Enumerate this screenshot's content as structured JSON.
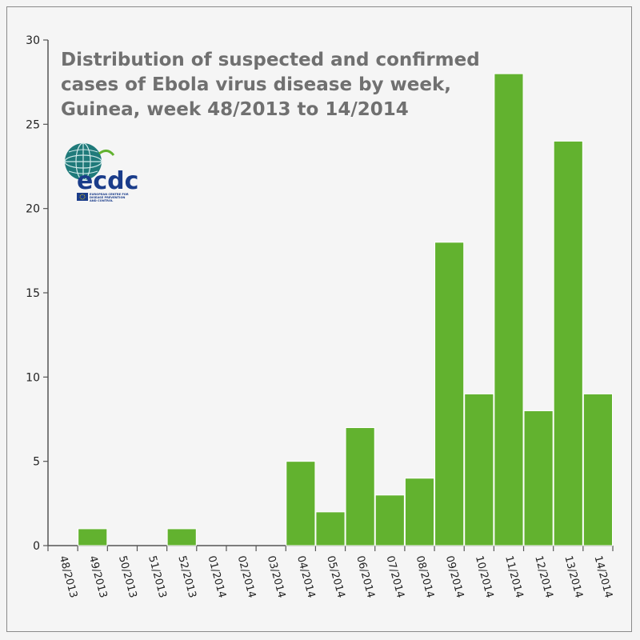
{
  "chart_data": {
    "type": "bar",
    "title_lines": [
      "Distribution of suspected and confirmed",
      "cases of Ebola virus disease by week,",
      "Guinea, week 48/2013 to 14/2014"
    ],
    "categories": [
      "48/2013",
      "49/2013",
      "50/2013",
      "51/2013",
      "52/2013",
      "01/2014",
      "02/2014",
      "03/2014",
      "04/2014",
      "05/2014",
      "06/2014",
      "07/2014",
      "08/2014",
      "09/2014",
      "10/2014",
      "11/2014",
      "12/2014",
      "13/2014",
      "14/2014"
    ],
    "values": [
      0,
      1,
      0,
      0,
      1,
      0,
      0,
      0,
      5,
      2,
      7,
      3,
      4,
      18,
      9,
      28,
      8,
      24,
      9
    ],
    "ylim": [
      0,
      30
    ],
    "yticks": [
      "0",
      "5",
      "10",
      "15",
      "20",
      "25",
      "30"
    ],
    "xlabel": "",
    "ylabel": "",
    "colors": {
      "bar": "#62b22f",
      "bar_edge": "#ffffff",
      "axis": "#555555",
      "title": "#707070"
    }
  },
  "logo": {
    "name": "ecdc",
    "subtitle_lines": [
      "EUROPEAN CENTRE FOR",
      "DISEASE PREVENTION",
      "AND CONTROL"
    ],
    "icon": "globe-icon"
  }
}
